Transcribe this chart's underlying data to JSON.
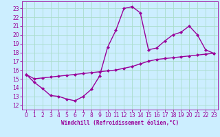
{
  "line1_x": [
    0,
    1,
    2,
    3,
    4,
    5,
    6,
    7,
    8,
    9,
    10,
    11,
    12,
    13,
    14,
    15,
    16,
    17,
    18,
    19,
    20,
    21,
    22,
    23
  ],
  "line1_y": [
    15.5,
    14.6,
    13.9,
    13.1,
    13.0,
    12.7,
    12.5,
    13.0,
    13.8,
    15.3,
    18.6,
    20.5,
    23.0,
    23.2,
    22.5,
    18.3,
    18.5,
    19.3,
    20.0,
    20.3,
    21.0,
    20.0,
    18.3,
    17.9
  ],
  "line2_x": [
    0,
    1,
    2,
    3,
    4,
    5,
    6,
    7,
    8,
    9,
    10,
    11,
    12,
    13,
    14,
    15,
    16,
    17,
    18,
    19,
    20,
    21,
    22,
    23
  ],
  "line2_y": [
    15.5,
    15.0,
    15.1,
    15.2,
    15.3,
    15.4,
    15.5,
    15.6,
    15.7,
    15.8,
    15.9,
    16.0,
    16.2,
    16.4,
    16.7,
    17.0,
    17.2,
    17.3,
    17.4,
    17.5,
    17.6,
    17.7,
    17.8,
    17.9
  ],
  "line_color": "#990099",
  "bg_color": "#cceeff",
  "grid_color": "#aaddcc",
  "xlabel": "Windchill (Refroidissement éolien,°C)",
  "xlim": [
    -0.5,
    23.5
  ],
  "ylim": [
    11.5,
    23.8
  ],
  "yticks": [
    12,
    13,
    14,
    15,
    16,
    17,
    18,
    19,
    20,
    21,
    22,
    23
  ],
  "xticks": [
    0,
    1,
    2,
    3,
    4,
    5,
    6,
    7,
    8,
    9,
    10,
    11,
    12,
    13,
    14,
    15,
    16,
    17,
    18,
    19,
    20,
    21,
    22,
    23
  ],
  "marker": "D",
  "markersize": 2.5,
  "linewidth": 1.0,
  "tick_fontsize": 5.5,
  "xlabel_fontsize": 5.5
}
